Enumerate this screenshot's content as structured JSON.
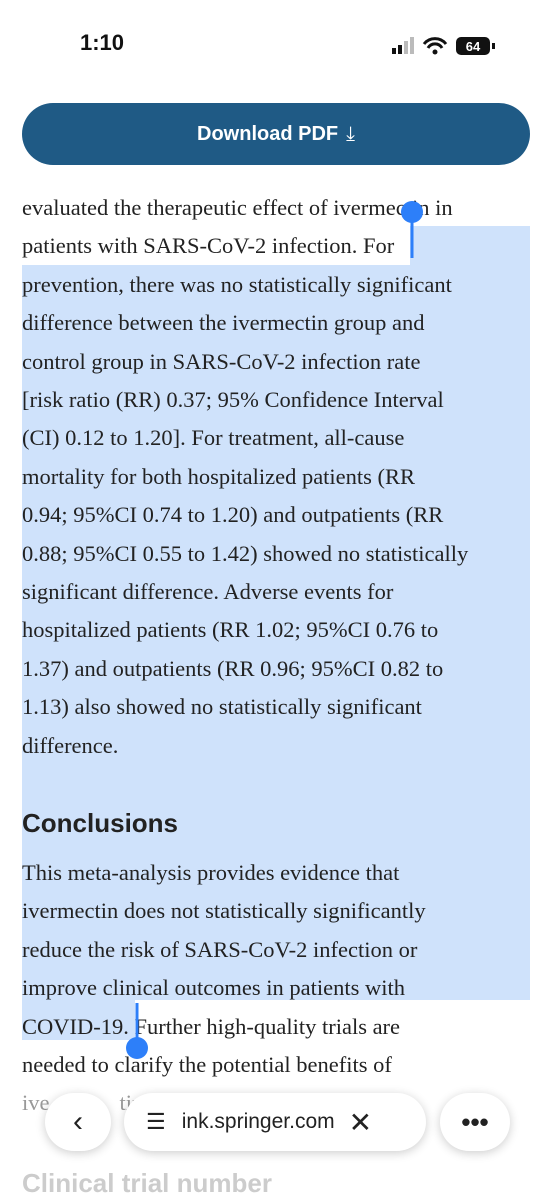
{
  "status_bar": {
    "time": "1:10",
    "battery": "64"
  },
  "header": {
    "button": "Download PDF"
  },
  "abstract": {
    "lines": [
      "evaluated the therapeutic effect of ivermectin in",
      "patients with SARS-CoV-2 infection. For",
      "prevention, there was no statistically significant",
      "difference between the ivermectin group and",
      "control group in SARS-CoV-2 infection rate",
      "[risk ratio (RR) 0.37; 95% Confidence Interval",
      "(CI) 0.12 to 1.20]. For treatment, all-cause",
      "mortality for both hospitalized patients (RR",
      "0.94; 95%CI 0.74 to 1.20) and outpatients (RR",
      "0.88; 95%CI 0.55 to 1.42) showed no statistically",
      "significant difference. Adverse events for",
      "hospitalized patients (RR 1.02; 95%CI 0.76 to",
      "1.37) and outpatients (RR 0.96; 95%CI 0.82 to",
      "1.13) also showed no statistically significant",
      "difference."
    ]
  },
  "conclusions": {
    "heading": "Conclusions",
    "lines": [
      "This meta-analysis provides evidence that",
      "ivermectin does not statistically significantly",
      "reduce the risk of SARS-CoV-2 infection or",
      "improve clinical outcomes in patients with",
      "COVID-19. Further high-quality trials are",
      "needed to clarify the potential benefits of"
    ],
    "cut_line": [
      "ive",
      "tir"
    ]
  },
  "next_heading": "Clinical trial number",
  "toolbar": {
    "url": "ink.springer.com"
  }
}
